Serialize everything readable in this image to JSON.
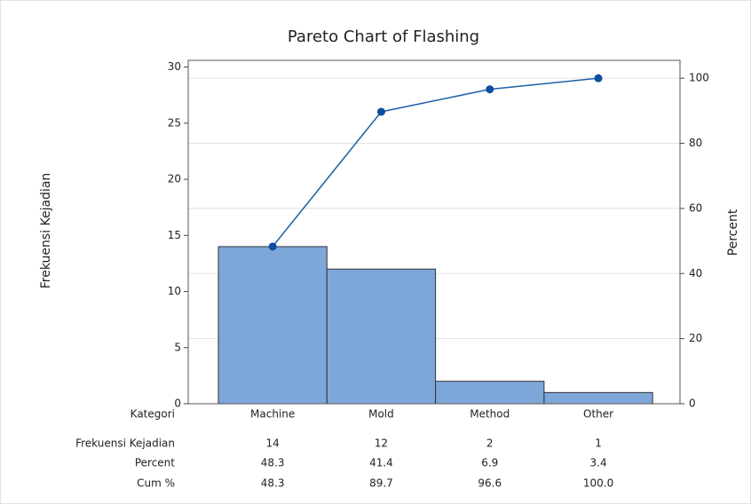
{
  "chart_data": {
    "type": "pareto",
    "title": "Pareto Chart of Flashing",
    "ylabel": "Frekuensi Kejadian",
    "y2label": "Percent",
    "category_label": "Kategori",
    "categories": [
      "Machine",
      "Mold",
      "Method",
      "Other"
    ],
    "series": [
      {
        "name": "Frekuensi Kejadian",
        "color": "#7da7d9",
        "values": [
          14,
          12,
          2,
          1
        ]
      },
      {
        "name": "Cum %",
        "color": "#1f5fa8",
        "axis": "y2",
        "values": [
          48.3,
          89.7,
          96.6,
          100
        ],
        "value_labels": [
          "48.3",
          "89.7",
          "96.6",
          "100.0"
        ]
      }
    ],
    "percent": {
      "name": "Percent",
      "values": [
        48.3,
        41.4,
        6.9,
        3.4
      ]
    },
    "ylim": [
      0,
      30.6
    ],
    "yticks": [
      0,
      5,
      10,
      15,
      20,
      25,
      30
    ],
    "y2lim": [
      0,
      105.5
    ],
    "y2ticks": [
      0,
      20,
      40,
      60,
      80,
      100
    ],
    "grid": true
  }
}
